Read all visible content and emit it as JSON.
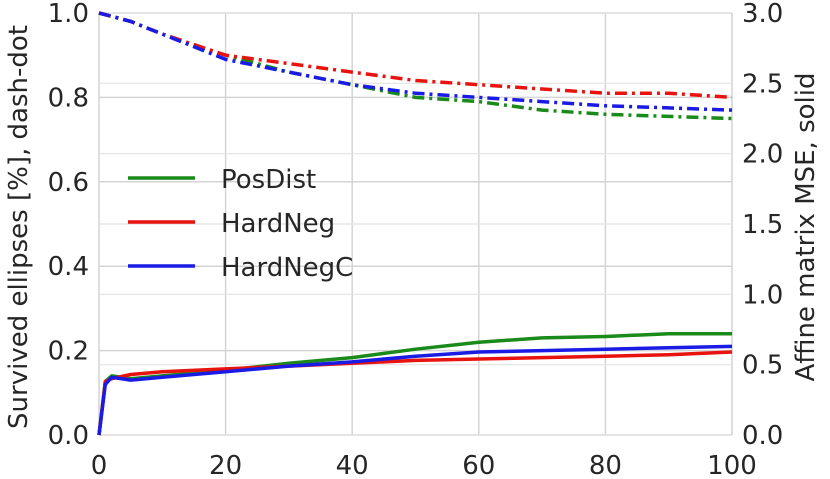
{
  "chart_data": {
    "type": "line",
    "title": "",
    "xlabel": "",
    "ylabel_left": "Survived ellipses [%], dash-dot",
    "ylabel_right": "Affine matrix MSE, solid",
    "xlim": [
      0,
      100
    ],
    "ylim_left": [
      0.0,
      1.0
    ],
    "ylim_right": [
      0.0,
      3.0
    ],
    "x_ticks": [
      "0",
      "20",
      "40",
      "60",
      "80",
      "100"
    ],
    "y_ticks_left": [
      "0.0",
      "0.2",
      "0.4",
      "0.6",
      "0.8",
      "1.0"
    ],
    "y_ticks_right": [
      "0.0",
      "0.5",
      "1.0",
      "1.5",
      "2.0",
      "2.5",
      "3.0"
    ],
    "grid": true,
    "legend_position": "center-left",
    "series": [
      {
        "name": "PosDist",
        "color": "#1a8a1a",
        "survived_dashdot": {
          "x": [
            0,
            5,
            10,
            20,
            30,
            40,
            50,
            60,
            70,
            80,
            90,
            100
          ],
          "y": [
            1.0,
            0.98,
            0.95,
            0.9,
            0.86,
            0.83,
            0.8,
            0.79,
            0.77,
            0.76,
            0.755,
            0.75
          ]
        },
        "mse_solid": {
          "x": [
            0,
            1,
            2,
            5,
            10,
            20,
            30,
            40,
            50,
            60,
            70,
            80,
            90,
            100
          ],
          "y": [
            0.0,
            0.38,
            0.42,
            0.4,
            0.42,
            0.46,
            0.51,
            0.55,
            0.61,
            0.66,
            0.69,
            0.7,
            0.72,
            0.72
          ]
        }
      },
      {
        "name": "HardNeg",
        "color": "#e8130f",
        "survived_dashdot": {
          "x": [
            0,
            5,
            10,
            20,
            30,
            40,
            50,
            60,
            70,
            80,
            90,
            100
          ],
          "y": [
            1.0,
            0.98,
            0.95,
            0.9,
            0.88,
            0.86,
            0.84,
            0.83,
            0.82,
            0.81,
            0.81,
            0.8
          ]
        },
        "mse_solid": {
          "x": [
            0,
            1,
            2,
            5,
            10,
            20,
            30,
            40,
            50,
            60,
            70,
            80,
            90,
            100
          ],
          "y": [
            0.0,
            0.38,
            0.4,
            0.43,
            0.45,
            0.47,
            0.49,
            0.51,
            0.53,
            0.54,
            0.55,
            0.56,
            0.57,
            0.59
          ]
        }
      },
      {
        "name": "HardNegC",
        "color": "#1b1be6",
        "survived_dashdot": {
          "x": [
            0,
            5,
            10,
            20,
            30,
            40,
            50,
            60,
            70,
            80,
            90,
            100
          ],
          "y": [
            1.0,
            0.98,
            0.95,
            0.89,
            0.86,
            0.83,
            0.81,
            0.8,
            0.79,
            0.78,
            0.775,
            0.77
          ]
        },
        "mse_solid": {
          "x": [
            0,
            1,
            2,
            5,
            10,
            20,
            30,
            40,
            50,
            60,
            70,
            80,
            90,
            100
          ],
          "y": [
            0.0,
            0.36,
            0.41,
            0.39,
            0.41,
            0.45,
            0.49,
            0.52,
            0.56,
            0.59,
            0.6,
            0.61,
            0.62,
            0.63
          ]
        }
      }
    ]
  }
}
